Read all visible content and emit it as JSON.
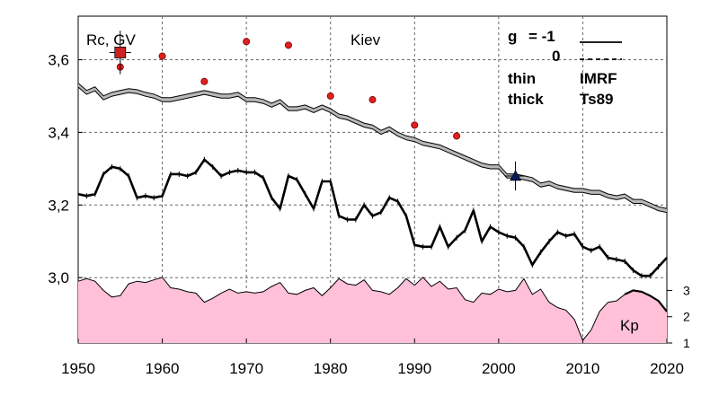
{
  "chart_data": {
    "type": "line",
    "station": "Kiev",
    "ylabel": "Rc, GV",
    "xlim": [
      1950,
      2020
    ],
    "ylim": [
      2.82,
      3.72
    ],
    "x_ticks": [
      1950,
      1960,
      1970,
      1980,
      1990,
      2000,
      2010,
      2020
    ],
    "y_ticks": [
      {
        "v": 3.0,
        "label": "3,0"
      },
      {
        "v": 3.2,
        "label": "3,2"
      },
      {
        "v": 3.4,
        "label": "3,4"
      },
      {
        "v": 3.6,
        "label": "3,6"
      }
    ],
    "grid": true,
    "legend": {
      "g_label": "g",
      "g_minus1": "= -1",
      "g_zero": "0",
      "thin": "thin",
      "thick": "thick",
      "imrf": "IMRF",
      "ts89": "Ts89"
    },
    "series": [
      {
        "line": "thin",
        "x": [
          1950,
          1951,
          1952,
          1953,
          1954,
          1955,
          1956,
          1957,
          1958,
          1959,
          1960,
          1961,
          1962,
          1963,
          1964,
          1965,
          1966,
          1967,
          1968,
          1969,
          1970,
          1971,
          1972,
          1973,
          1974,
          1975,
          1976,
          1977,
          1978,
          1979,
          1980,
          1981,
          1982,
          1983,
          1984,
          1985,
          1986,
          1987,
          1988,
          1989,
          1990,
          1991,
          1992,
          1993,
          1994,
          1995,
          1996,
          1997,
          1998,
          1999,
          2000,
          2001,
          2002,
          2003,
          2004,
          2005,
          2006,
          2007,
          2008,
          2009,
          2010,
          2011,
          2012,
          2013,
          2014,
          2015,
          2016,
          2017,
          2018,
          2019,
          2020
        ],
        "values": [
          3.53,
          3.51,
          3.52,
          3.495,
          3.505,
          3.51,
          3.515,
          3.512,
          3.505,
          3.5,
          3.49,
          3.49,
          3.495,
          3.5,
          3.505,
          3.51,
          3.505,
          3.5,
          3.5,
          3.505,
          3.49,
          3.49,
          3.485,
          3.475,
          3.485,
          3.465,
          3.465,
          3.47,
          3.46,
          3.47,
          3.46,
          3.445,
          3.44,
          3.43,
          3.42,
          3.415,
          3.4,
          3.41,
          3.395,
          3.385,
          3.38,
          3.37,
          3.365,
          3.36,
          3.35,
          3.34,
          3.33,
          3.32,
          3.31,
          3.305,
          3.305,
          3.28,
          3.28,
          3.275,
          3.27,
          3.255,
          3.26,
          3.25,
          3.245,
          3.24,
          3.24,
          3.235,
          3.235,
          3.225,
          3.22,
          3.225,
          3.21,
          3.21,
          3.2,
          3.19,
          3.185
        ]
      },
      {
        "line": "thick",
        "x": [
          1950,
          1951,
          1952,
          1953,
          1954,
          1955,
          1956,
          1957,
          1958,
          1959,
          1960,
          1961,
          1962,
          1963,
          1964,
          1965,
          1966,
          1967,
          1968,
          1969,
          1970,
          1971,
          1972,
          1973,
          1974,
          1975,
          1976,
          1977,
          1978,
          1979,
          1980,
          1981,
          1982,
          1983,
          1984,
          1985,
          1986,
          1987,
          1988,
          1989,
          1990,
          1991,
          1992,
          1993,
          1994,
          1995,
          1996,
          1997,
          1998,
          1999,
          2000,
          2001,
          2002,
          2003,
          2004,
          2005,
          2006,
          2007,
          2008,
          2009,
          2010,
          2011,
          2012,
          2013,
          2014,
          2015,
          2016,
          2017,
          2018,
          2019,
          2020
        ],
        "values": [
          3.23,
          3.225,
          3.23,
          3.285,
          3.305,
          3.3,
          3.28,
          3.22,
          3.225,
          3.22,
          3.225,
          3.285,
          3.285,
          3.28,
          3.29,
          3.325,
          3.305,
          3.28,
          3.29,
          3.295,
          3.29,
          3.29,
          3.275,
          3.22,
          3.19,
          3.28,
          3.27,
          3.23,
          3.19,
          3.265,
          3.265,
          3.17,
          3.16,
          3.16,
          3.2,
          3.17,
          3.18,
          3.22,
          3.21,
          3.17,
          3.09,
          3.085,
          3.085,
          3.14,
          3.085,
          3.11,
          3.13,
          3.185,
          3.1,
          3.14,
          3.125,
          3.115,
          3.11,
          3.085,
          3.035,
          3.07,
          3.1,
          3.125,
          3.115,
          3.12,
          3.085,
          3.075,
          3.085,
          3.055,
          3.05,
          3.045,
          3.02,
          3.005,
          3.005,
          3.03,
          3.055
        ]
      },
      {
        "name": "Kp",
        "type": "area",
        "color": "#ffc0d8",
        "ticks": [
          1,
          2,
          3
        ],
        "ylim": [
          1,
          3.8
        ],
        "x": [
          1950,
          1951,
          1952,
          1953,
          1954,
          1955,
          1956,
          1957,
          1958,
          1959,
          1960,
          1961,
          1962,
          1963,
          1964,
          1965,
          1966,
          1967,
          1968,
          1969,
          1970,
          1971,
          1972,
          1973,
          1974,
          1975,
          1976,
          1977,
          1978,
          1979,
          1980,
          1981,
          1982,
          1983,
          1984,
          1985,
          1986,
          1987,
          1988,
          1989,
          1990,
          1991,
          1992,
          1993,
          1994,
          1995,
          1996,
          1997,
          1998,
          1999,
          2000,
          2001,
          2002,
          2003,
          2004,
          2005,
          2006,
          2007,
          2008,
          2009,
          2010,
          2011,
          2012,
          2013,
          2014,
          2015,
          2016,
          2017,
          2018,
          2019,
          2020
        ],
        "values": [
          3.35,
          3.45,
          3.35,
          3.0,
          2.75,
          2.8,
          3.25,
          3.35,
          3.3,
          3.4,
          3.5,
          3.1,
          3.05,
          2.95,
          2.9,
          2.55,
          2.7,
          2.9,
          3.05,
          2.9,
          2.95,
          2.9,
          2.95,
          3.15,
          3.3,
          2.9,
          2.85,
          3.0,
          3.1,
          2.8,
          3.1,
          3.45,
          3.25,
          3.2,
          3.4,
          3.0,
          2.95,
          2.85,
          3.1,
          3.45,
          3.2,
          3.5,
          3.15,
          3.35,
          3.05,
          3.1,
          2.65,
          2.55,
          2.9,
          2.85,
          3.05,
          2.95,
          3.0,
          3.45,
          2.85,
          3.05,
          2.55,
          2.35,
          2.25,
          1.9,
          1.1,
          1.5,
          2.2,
          2.55,
          2.6,
          2.85,
          3.0,
          2.95,
          2.8,
          2.6,
          2.2
        ]
      }
    ],
    "points_circles": [
      {
        "x": 1955,
        "y": 3.58
      },
      {
        "x": 1960,
        "y": 3.61
      },
      {
        "x": 1965,
        "y": 3.54
      },
      {
        "x": 1970,
        "y": 3.65
      },
      {
        "x": 1975,
        "y": 3.64
      },
      {
        "x": 1980,
        "y": 3.5
      },
      {
        "x": 1985,
        "y": 3.49
      },
      {
        "x": 1990,
        "y": 3.42
      },
      {
        "x": 1995,
        "y": 3.39
      }
    ],
    "point_square": {
      "x": 1955,
      "y": 3.62,
      "err": 0.06,
      "color": "#cc2222"
    },
    "point_triangle": {
      "x": 2002,
      "y": 3.28,
      "err": 0.04,
      "color": "#0a1a5a"
    }
  }
}
